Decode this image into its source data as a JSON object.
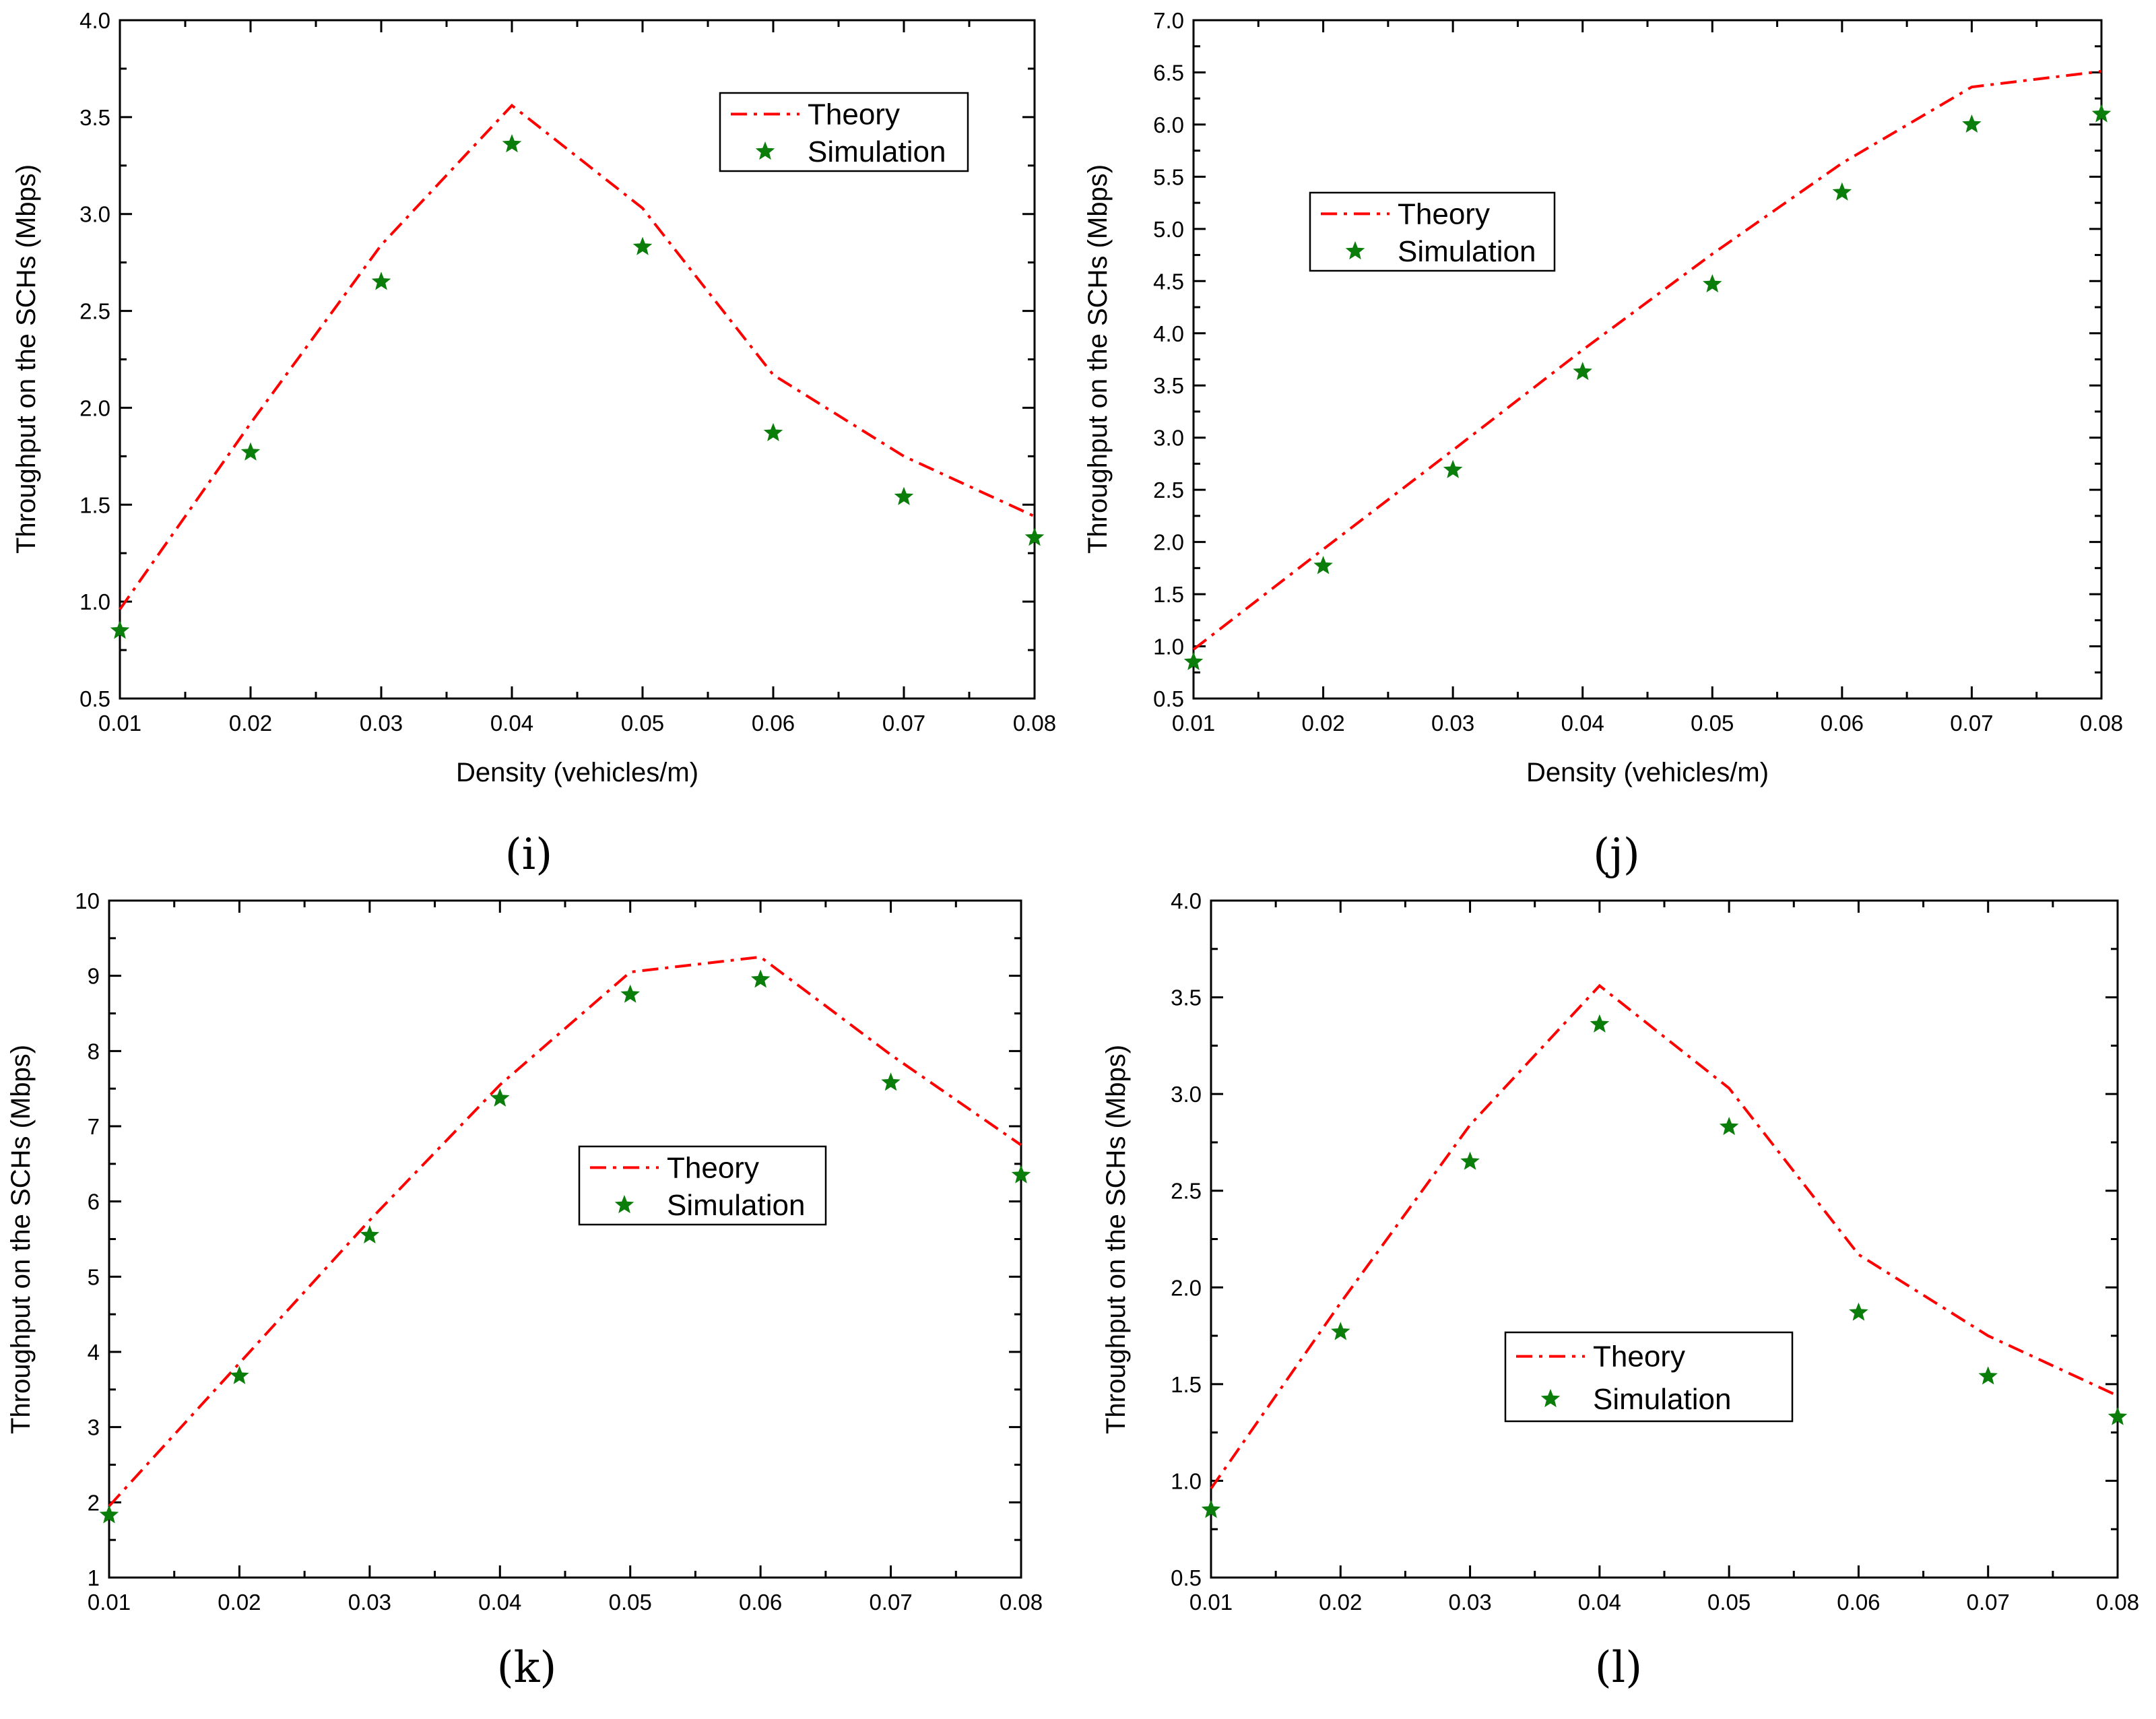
{
  "colors": {
    "theory": "#ff0000",
    "simulation": "#0a7d0a",
    "axis": "#000000"
  },
  "chart_data": [
    {
      "type": "line",
      "panel_label": "(i)",
      "title": "",
      "xlabel": "Density (vehicles/m)",
      "ylabel": "Throughput on the SCHs (Mbps)",
      "xlim": [
        0.01,
        0.08
      ],
      "ylim": [
        0.5,
        4.0
      ],
      "x": [
        0.01,
        0.02,
        0.03,
        0.04,
        0.05,
        0.06,
        0.07,
        0.08
      ],
      "xticks": [
        "0.01",
        "0.02",
        "0.03",
        "0.04",
        "0.05",
        "0.06",
        "0.07",
        "0.08"
      ],
      "yticks": [
        "0.5",
        "1.0",
        "1.5",
        "2.0",
        "2.5",
        "3.0",
        "3.5",
        "4.0"
      ],
      "legend_position": "top-right",
      "series": [
        {
          "name": "Theory",
          "style": "dash-dot line",
          "values": [
            0.96,
            1.92,
            2.84,
            3.56,
            3.03,
            2.17,
            1.75,
            1.44
          ]
        },
        {
          "name": "Simulation",
          "style": "star markers",
          "values": [
            0.85,
            1.77,
            2.65,
            3.36,
            2.83,
            1.87,
            1.54,
            1.33
          ]
        }
      ]
    },
    {
      "type": "line",
      "panel_label": "(j)",
      "title": "",
      "xlabel": "Density (vehicles/m)",
      "ylabel": "Throughput on the SCHs (Mbps)",
      "xlim": [
        0.01,
        0.08
      ],
      "ylim": [
        0.5,
        7.0
      ],
      "x": [
        0.01,
        0.02,
        0.03,
        0.04,
        0.05,
        0.06,
        0.07,
        0.08
      ],
      "xticks": [
        "0.01",
        "0.02",
        "0.03",
        "0.04",
        "0.05",
        "0.06",
        "0.07",
        "0.08"
      ],
      "yticks": [
        "0.5",
        "1.0",
        "1.5",
        "2.0",
        "2.5",
        "3.0",
        "3.5",
        "4.0",
        "4.5",
        "5.0",
        "5.5",
        "6.0",
        "6.5",
        "7.0"
      ],
      "legend_position": "upper-left",
      "series": [
        {
          "name": "Theory",
          "style": "dash-dot line",
          "values": [
            0.97,
            1.93,
            2.88,
            3.84,
            4.76,
            5.63,
            6.36,
            6.51
          ]
        },
        {
          "name": "Simulation",
          "style": "star markers",
          "values": [
            0.85,
            1.77,
            2.69,
            3.63,
            4.47,
            5.35,
            6.0,
            6.1
          ]
        }
      ]
    },
    {
      "type": "line",
      "panel_label": "(k)",
      "title": "",
      "xlabel": "",
      "ylabel": "Throughput on the SCHs (Mbps)",
      "xlim": [
        0.01,
        0.08
      ],
      "ylim": [
        1,
        10
      ],
      "x": [
        0.01,
        0.02,
        0.03,
        0.04,
        0.05,
        0.06,
        0.07,
        0.08
      ],
      "xticks": [
        "0.01",
        "0.02",
        "0.03",
        "0.04",
        "0.05",
        "0.06",
        "0.07",
        "0.08"
      ],
      "yticks": [
        "1",
        "2",
        "3",
        "4",
        "5",
        "6",
        "7",
        "8",
        "9",
        "10"
      ],
      "legend_position": "center",
      "series": [
        {
          "name": "Theory",
          "style": "dash-dot line",
          "values": [
            1.95,
            3.85,
            5.75,
            7.55,
            9.05,
            9.25,
            7.95,
            6.75
          ]
        },
        {
          "name": "Simulation",
          "style": "star markers",
          "values": [
            1.83,
            3.68,
            5.55,
            7.37,
            8.75,
            8.95,
            7.58,
            6.35
          ]
        }
      ]
    },
    {
      "type": "line",
      "panel_label": "(l)",
      "title": "",
      "xlabel": "",
      "ylabel": "Throughput on the SCHs (Mbps)",
      "xlim": [
        0.01,
        0.08
      ],
      "ylim": [
        0.5,
        4.0
      ],
      "x": [
        0.01,
        0.02,
        0.03,
        0.04,
        0.05,
        0.06,
        0.07,
        0.08
      ],
      "xticks": [
        "0.01",
        "0.02",
        "0.03",
        "0.04",
        "0.05",
        "0.06",
        "0.07",
        "0.08"
      ],
      "yticks": [
        "0.5",
        "1.0",
        "1.5",
        "2.0",
        "2.5",
        "3.0",
        "3.5",
        "4.0"
      ],
      "legend_position": "lower-center",
      "series": [
        {
          "name": "Theory",
          "style": "dash-dot line",
          "values": [
            0.96,
            1.92,
            2.84,
            3.56,
            3.03,
            2.17,
            1.75,
            1.44
          ]
        },
        {
          "name": "Simulation",
          "style": "star markers",
          "values": [
            0.85,
            1.77,
            2.65,
            3.36,
            2.83,
            1.87,
            1.54,
            1.33
          ]
        }
      ]
    }
  ]
}
